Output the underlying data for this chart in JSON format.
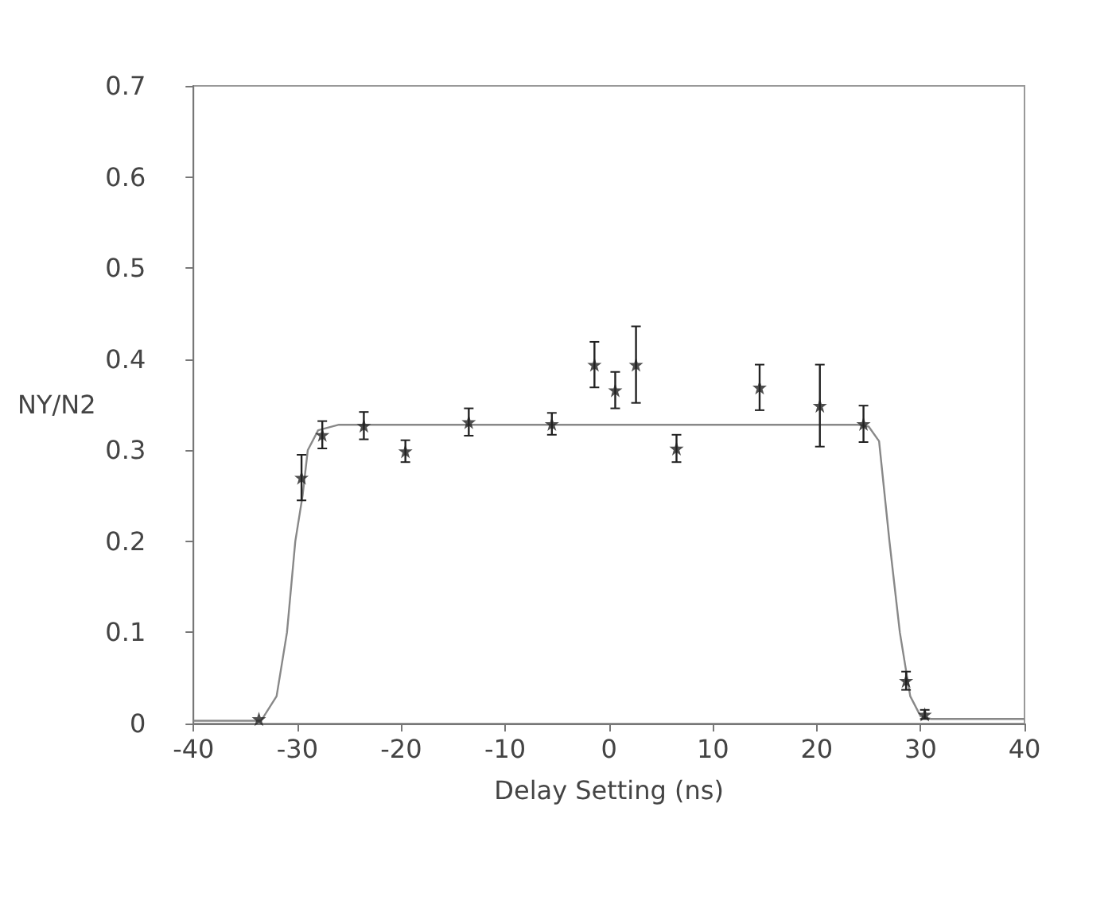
{
  "chart_data": {
    "type": "scatter",
    "xlabel": "Delay Setting (ns)",
    "ylabel": "NY/N2",
    "xlim": [
      -40,
      40
    ],
    "xticks": [
      -40,
      -30,
      -20,
      -10,
      0,
      10,
      20,
      30,
      40
    ],
    "ylim": [
      0,
      0.7
    ],
    "yticks": [
      0,
      0.1,
      0.2,
      0.3,
      0.4,
      0.5,
      0.6,
      0.7
    ],
    "grid": false,
    "series": [
      {
        "color": "#222222",
        "marker": "star",
        "x": [
          -33.7,
          -29.6,
          -27.6,
          -23.6,
          -19.6,
          -13.5,
          -5.5,
          -1.4,
          0.6,
          2.6,
          6.5,
          14.5,
          20.3,
          24.5,
          28.6,
          30.4
        ],
        "values": [
          0.005,
          0.27,
          0.317,
          0.327,
          0.299,
          0.331,
          0.329,
          0.394,
          0.366,
          0.394,
          0.302,
          0.369,
          0.349,
          0.329,
          0.047,
          0.01
        ],
        "errors": [
          null,
          0.025,
          0.015,
          0.015,
          0.012,
          0.015,
          0.012,
          0.025,
          0.02,
          0.042,
          0.015,
          0.025,
          0.045,
          0.02,
          0.01,
          0.005
        ]
      },
      {
        "type": "line",
        "color": "#888888",
        "marker": "none",
        "line_style": "solid",
        "x": [
          -40,
          -33.5,
          -32,
          -31,
          -30.2,
          -29.5,
          -29,
          -28,
          -26,
          24,
          25,
          26,
          27,
          28,
          29,
          30,
          31,
          40
        ],
        "values": [
          0.003,
          0.003,
          0.03,
          0.1,
          0.2,
          0.25,
          0.3,
          0.322,
          0.328,
          0.328,
          0.326,
          0.31,
          0.2,
          0.1,
          0.03,
          0.008,
          0.005,
          0.005
        ]
      }
    ]
  }
}
